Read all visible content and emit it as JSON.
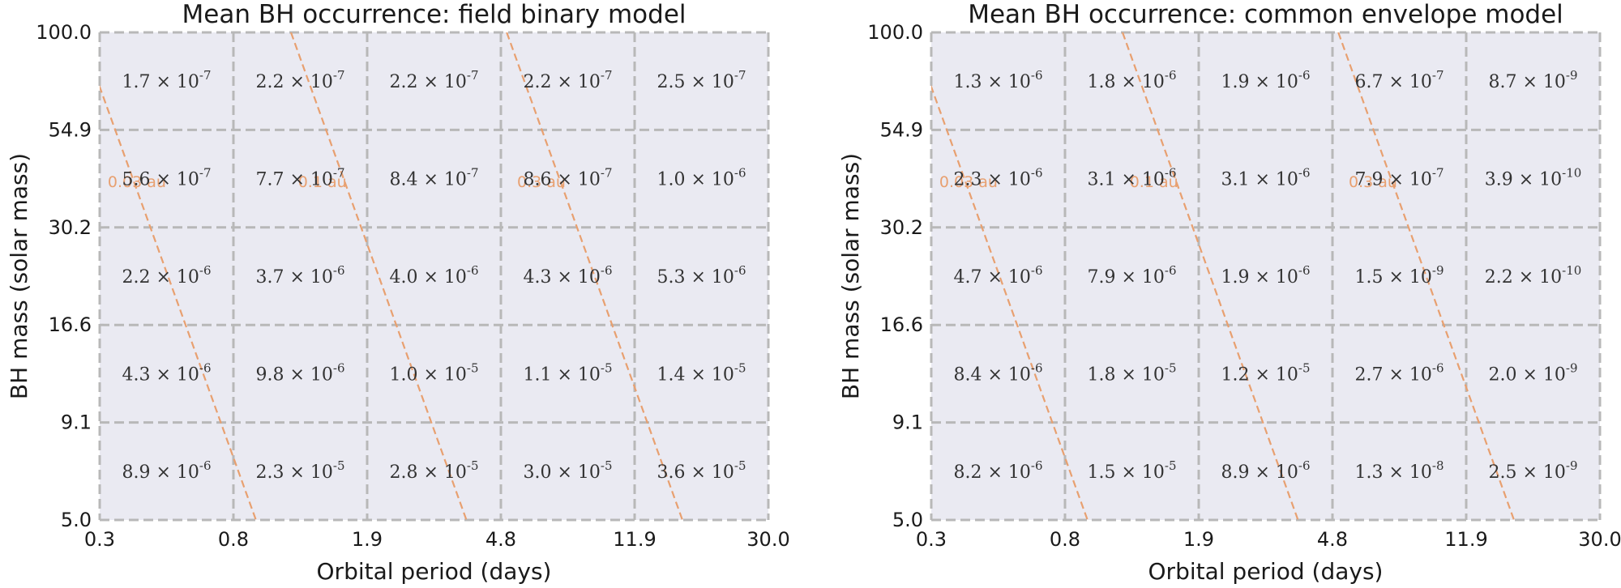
{
  "chart_data": [
    {
      "type": "heatmap",
      "title": "Mean BH occurrence: field binary model",
      "xlabel": "Orbital period (days)",
      "ylabel": "BH mass (solar mass)",
      "x_scale": "log",
      "y_scale": "log",
      "x_ticks": [
        "0.3",
        "0.8",
        "1.9",
        "4.8",
        "11.9",
        "30.0"
      ],
      "y_ticks": [
        "5.0",
        "9.1",
        "16.6",
        "30.2",
        "54.9",
        "100.0"
      ],
      "x_edges": [
        0.3,
        0.8,
        1.9,
        4.8,
        11.9,
        30.0
      ],
      "y_edges": [
        5.0,
        9.1,
        16.6,
        30.2,
        54.9,
        100.0
      ],
      "grid": true,
      "cells_top_to_bottom": [
        [
          [
            "1.7",
            "-7"
          ],
          [
            "2.2",
            "-7"
          ],
          [
            "2.2",
            "-7"
          ],
          [
            "2.2",
            "-7"
          ],
          [
            "2.5",
            "-7"
          ]
        ],
        [
          [
            "5.6",
            "-7"
          ],
          [
            "7.7",
            "-7"
          ],
          [
            "8.4",
            "-7"
          ],
          [
            "8.6",
            "-7"
          ],
          [
            "1.0",
            "-6"
          ]
        ],
        [
          [
            "2.2",
            "-6"
          ],
          [
            "3.7",
            "-6"
          ],
          [
            "4.0",
            "-6"
          ],
          [
            "4.3",
            "-6"
          ],
          [
            "5.3",
            "-6"
          ]
        ],
        [
          [
            "4.3",
            "-6"
          ],
          [
            "9.8",
            "-6"
          ],
          [
            "1.0",
            "-5"
          ],
          [
            "1.1",
            "-5"
          ],
          [
            "1.4",
            "-5"
          ]
        ],
        [
          [
            "8.9",
            "-6"
          ],
          [
            "2.3",
            "-5"
          ],
          [
            "2.8",
            "-5"
          ],
          [
            "3.0",
            "-5"
          ],
          [
            "3.6",
            "-5"
          ]
        ]
      ],
      "separation_lines": [
        {
          "label": "0.03 au",
          "au": 0.03
        },
        {
          "label": "0.1 au",
          "au": 0.1
        },
        {
          "label": "0.3 au",
          "au": 0.3
        }
      ]
    },
    {
      "type": "heatmap",
      "title": "Mean BH occurrence: common envelope model",
      "xlabel": "Orbital period (days)",
      "ylabel": "BH mass (solar mass)",
      "x_scale": "log",
      "y_scale": "log",
      "x_ticks": [
        "0.3",
        "0.8",
        "1.9",
        "4.8",
        "11.9",
        "30.0"
      ],
      "y_ticks": [
        "5.0",
        "9.1",
        "16.6",
        "30.2",
        "54.9",
        "100.0"
      ],
      "x_edges": [
        0.3,
        0.8,
        1.9,
        4.8,
        11.9,
        30.0
      ],
      "y_edges": [
        5.0,
        9.1,
        16.6,
        30.2,
        54.9,
        100.0
      ],
      "grid": true,
      "cells_top_to_bottom": [
        [
          [
            "1.3",
            "-6"
          ],
          [
            "1.8",
            "-6"
          ],
          [
            "1.9",
            "-6"
          ],
          [
            "6.7",
            "-7"
          ],
          [
            "8.7",
            "-9"
          ]
        ],
        [
          [
            "2.3",
            "-6"
          ],
          [
            "3.1",
            "-6"
          ],
          [
            "3.1",
            "-6"
          ],
          [
            "7.9",
            "-7"
          ],
          [
            "3.9",
            "-10"
          ]
        ],
        [
          [
            "4.7",
            "-6"
          ],
          [
            "7.9",
            "-6"
          ],
          [
            "1.9",
            "-6"
          ],
          [
            "1.5",
            "-9"
          ],
          [
            "2.2",
            "-10"
          ]
        ],
        [
          [
            "8.4",
            "-6"
          ],
          [
            "1.8",
            "-5"
          ],
          [
            "1.2",
            "-5"
          ],
          [
            "2.7",
            "-6"
          ],
          [
            "2.0",
            "-9"
          ]
        ],
        [
          [
            "8.2",
            "-6"
          ],
          [
            "1.5",
            "-5"
          ],
          [
            "8.9",
            "-6"
          ],
          [
            "1.3",
            "-8"
          ],
          [
            "2.5",
            "-9"
          ]
        ]
      ],
      "separation_lines": [
        {
          "label": "0.03 au",
          "au": 0.03
        },
        {
          "label": "0.1 au",
          "au": 0.1
        },
        {
          "label": "0.3 au",
          "au": 0.3
        }
      ]
    }
  ],
  "colors": {
    "plot_background": "#eaeaf2",
    "grid": "#b8b8b8",
    "separation_line": "#e8a070",
    "text": "#1a1a1a"
  }
}
